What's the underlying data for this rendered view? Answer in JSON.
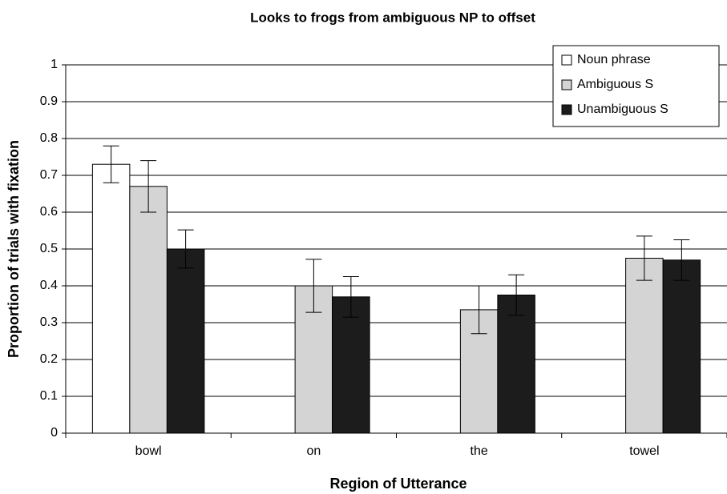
{
  "chart_data": {
    "type": "bar",
    "title": "Looks to frogs from ambiguous NP to offset",
    "x_label": "Region of Utterance",
    "y_label": "Proportion of trials with fixation",
    "categories": [
      "bowl",
      "on",
      "the",
      "towel"
    ],
    "series": [
      {
        "name": "Noun phrase",
        "color": "#ffffff",
        "values": [
          0.73,
          null,
          null,
          null
        ],
        "errors": [
          0.05,
          null,
          null,
          null
        ]
      },
      {
        "name": "Ambiguous S",
        "color": "#d4d4d4",
        "values": [
          0.67,
          0.4,
          0.335,
          0.475
        ],
        "errors": [
          0.07,
          0.072,
          0.065,
          0.06
        ]
      },
      {
        "name": "Unambiguous S",
        "color": "#1c1c1c",
        "values": [
          0.5,
          0.37,
          0.375,
          0.47
        ],
        "errors": [
          0.052,
          0.055,
          0.055,
          0.055
        ]
      }
    ],
    "ylim": [
      0,
      1
    ],
    "yticks": [
      0,
      0.1,
      0.2,
      0.3,
      0.4,
      0.5,
      0.6,
      0.7,
      0.8,
      0.9,
      1
    ],
    "grid": true,
    "legend": "top-right"
  }
}
